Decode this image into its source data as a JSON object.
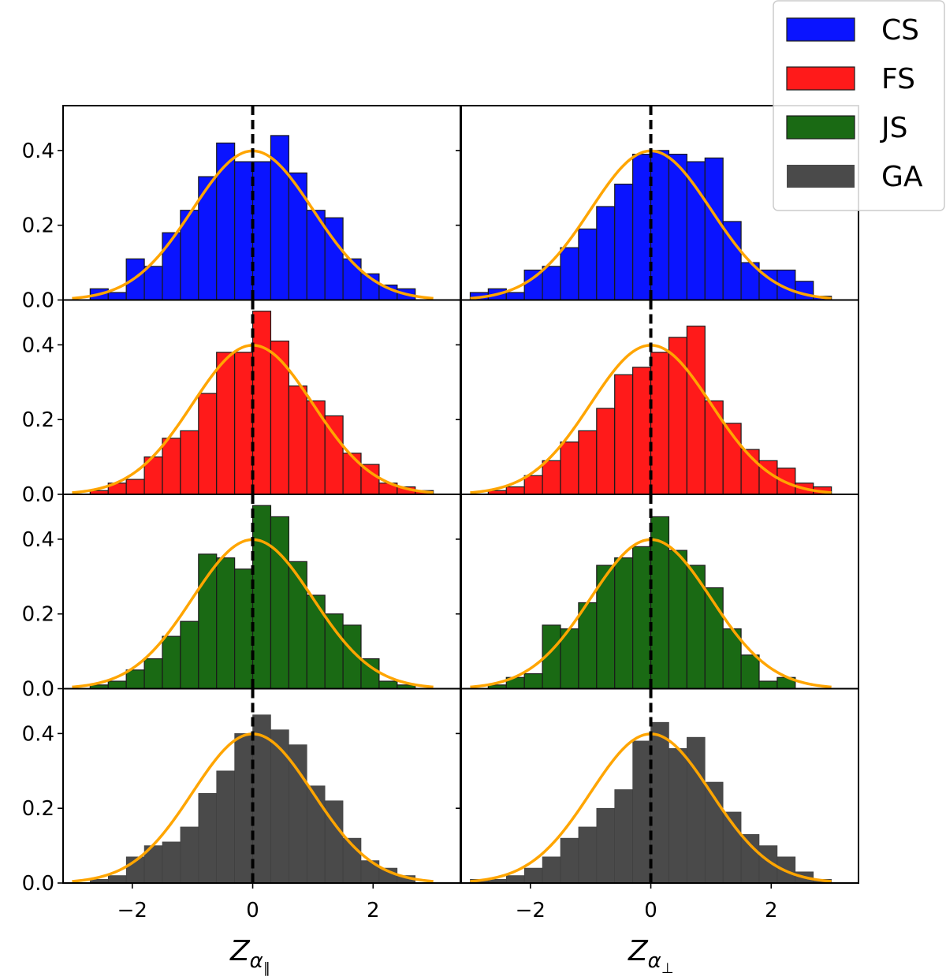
{
  "chart_data": {
    "type": "bar",
    "title": "",
    "grid": false,
    "legend": {
      "placement": "top-right",
      "entries": [
        {
          "label": "CS",
          "color": "#0a14ff"
        },
        {
          "label": "FS",
          "color": "#ff1a1a"
        },
        {
          "label": "JS",
          "color": "#1a6a14"
        },
        {
          "label": "GA",
          "color": "#4a4a4a"
        }
      ]
    },
    "xlabels": [
      "Z_α∥",
      "Z_α⊥"
    ],
    "xlim": [
      -3.15,
      3.45
    ],
    "ylim": [
      0,
      0.52
    ],
    "xticks": [
      -2,
      0,
      2
    ],
    "xtick_labels": [
      "−2",
      "0",
      "2"
    ],
    "yticks": [
      0.0,
      0.2,
      0.4
    ],
    "ytick_labels": [
      "0.0",
      "0.2",
      "0.4"
    ],
    "reference_line": {
      "x": 0,
      "style": "dashed",
      "color": "#000000"
    },
    "normal_curve": {
      "mean": 0,
      "std": 1,
      "color": "#ffa500",
      "x_range": [
        -3,
        3
      ]
    },
    "bin_edges": [
      -3.0,
      -2.7,
      -2.4,
      -2.1,
      -1.8,
      -1.5,
      -1.2,
      -0.9,
      -0.6,
      -0.3,
      0.0,
      0.3,
      0.6,
      0.9,
      1.2,
      1.5,
      1.8,
      2.1,
      2.4,
      2.7,
      3.0
    ],
    "panels": [
      {
        "series": "CS",
        "column": 0,
        "values": [
          0,
          0.03,
          0.02,
          0.11,
          0.09,
          0.18,
          0.24,
          0.33,
          0.42,
          0.37,
          0.37,
          0.44,
          0.34,
          0.24,
          0.22,
          0.11,
          0.07,
          0.04,
          0.03,
          0,
          0
        ]
      },
      {
        "series": "CS",
        "column": 1,
        "values": [
          0.02,
          0.03,
          0.02,
          0.08,
          0.09,
          0.14,
          0.19,
          0.25,
          0.31,
          0.39,
          0.4,
          0.39,
          0.37,
          0.38,
          0.21,
          0.1,
          0.08,
          0.08,
          0.05,
          0.01,
          0
        ]
      },
      {
        "series": "FS",
        "column": 0,
        "values": [
          0,
          0.01,
          0.03,
          0.04,
          0.1,
          0.15,
          0.17,
          0.27,
          0.38,
          0.38,
          0.49,
          0.41,
          0.29,
          0.25,
          0.21,
          0.11,
          0.08,
          0.03,
          0.02,
          0.01,
          0
        ]
      },
      {
        "series": "FS",
        "column": 1,
        "values": [
          0,
          0.01,
          0.02,
          0.05,
          0.09,
          0.14,
          0.17,
          0.23,
          0.32,
          0.34,
          0.38,
          0.42,
          0.45,
          0.25,
          0.19,
          0.12,
          0.09,
          0.07,
          0.03,
          0.02,
          0
        ]
      },
      {
        "series": "FS",
        "column": 0,
        "values": [],
        "skip": true
      },
      {
        "series": "JS",
        "column": 0,
        "values": [
          0,
          0.01,
          0.02,
          0.05,
          0.08,
          0.14,
          0.18,
          0.36,
          0.35,
          0.32,
          0.49,
          0.46,
          0.34,
          0.25,
          0.2,
          0.17,
          0.08,
          0.02,
          0.01,
          0,
          0
        ]
      },
      {
        "series": "JS",
        "column": 1,
        "values": [
          0,
          0.01,
          0.03,
          0.04,
          0.17,
          0.16,
          0.23,
          0.33,
          0.35,
          0.38,
          0.46,
          0.37,
          0.33,
          0.27,
          0.16,
          0.09,
          0.02,
          0.03,
          0,
          0,
          0
        ]
      },
      {
        "series": "GA",
        "column": 0,
        "values": [
          0,
          0.01,
          0.02,
          0.07,
          0.1,
          0.11,
          0.15,
          0.24,
          0.3,
          0.4,
          0.45,
          0.41,
          0.37,
          0.26,
          0.22,
          0.12,
          0.06,
          0.04,
          0.02,
          0,
          0
        ]
      },
      {
        "series": "GA",
        "column": 1,
        "values": [
          0.01,
          0.01,
          0.02,
          0.04,
          0.07,
          0.12,
          0.15,
          0.2,
          0.25,
          0.38,
          0.43,
          0.36,
          0.39,
          0.27,
          0.19,
          0.13,
          0.1,
          0.07,
          0.03,
          0.01,
          0
        ]
      }
    ]
  }
}
